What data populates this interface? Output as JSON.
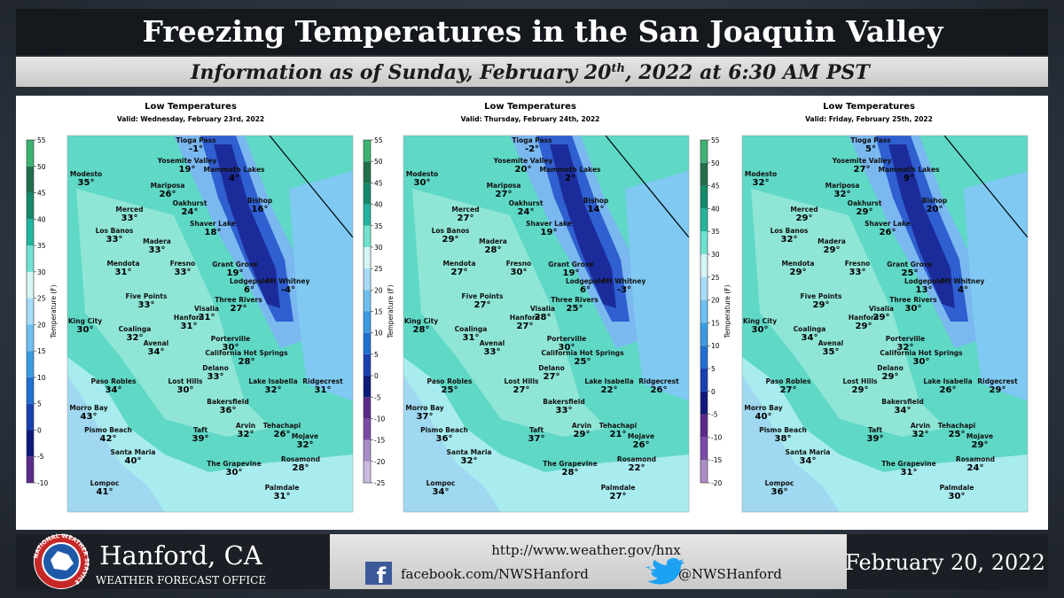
{
  "header": {
    "title": "Freezing Temperatures in the San Joaquin Valley",
    "subtitle": {
      "before": "Information as of Sunday, February 20",
      "sup": "th",
      "after": ", 2022 at 6:30 AM PST"
    }
  },
  "cities": [
    "Tioga Pass",
    "Yosemite Valley",
    "Mammoth Lakes",
    "Modesto",
    "Mariposa",
    "Bishop",
    "Merced",
    "Oakhurst",
    "Shaver Lake",
    "Los Banos",
    "Madera",
    "Fresno",
    "Mendota",
    "Grant Grove",
    "Lodgepole",
    "Mt Whitney",
    "Five Points",
    "Three Rivers",
    "Visalia",
    "Hanford",
    "King City",
    "Coalinga",
    "Avenal",
    "Porterville",
    "California Hot Springs",
    "Delano",
    "Paso Robles",
    "Lost Hills",
    "Lake Isabella",
    "Ridgecrest",
    "Bakersfield",
    "Morro Bay",
    "Arvin",
    "Tehachapi",
    "Pismo Beach",
    "Taft",
    "Mojave",
    "Santa Maria",
    "Rosamond",
    "The Grapevine",
    "Lompoc",
    "Palmdale"
  ],
  "panels": [
    {
      "title": "Low Temperatures",
      "valid": "Valid: Wednesday, February 23rd, 2022",
      "colorbar": {
        "label": "Temperature (F)",
        "lim": [
          -10,
          55
        ],
        "ticks": [
          -10,
          -5,
          0,
          5,
          10,
          15,
          20,
          25,
          30,
          35,
          40,
          45,
          50,
          55
        ],
        "colors": [
          "#5a2a8a",
          "#0d1a7a",
          "#1a3fb0",
          "#1f6fd1",
          "#3a9be3",
          "#6ec0f0",
          "#a7dcf7",
          "#d4f5f2",
          "#6fe3cf",
          "#22b5a0",
          "#138a6b",
          "#1f6f4a",
          "#3cb371"
        ]
      },
      "temps": [
        "-1°",
        "19°",
        "4°",
        "35°",
        "26°",
        "16°",
        "33°",
        "24°",
        "18°",
        "33°",
        "33°",
        "33°",
        "31°",
        "19°",
        "6°",
        "-4°",
        "33°",
        "27°",
        "31°",
        "31°",
        "30°",
        "32°",
        "34°",
        "30°",
        "28°",
        "33°",
        "34°",
        "30°",
        "32°",
        "31°",
        "36°",
        "43°",
        "32°",
        "26°",
        "42°",
        "39°",
        "32°",
        "40°",
        "28°",
        "30°",
        "41°",
        "31°"
      ]
    },
    {
      "title": "Low Temperatures",
      "valid": "Valid: Thursday, February 24th, 2022",
      "colorbar": {
        "label": "Temperature (F)",
        "lim": [
          -25,
          55
        ],
        "ticks": [
          -25,
          -20,
          -15,
          -10,
          -5,
          0,
          5,
          10,
          15,
          20,
          25,
          30,
          35,
          40,
          45,
          50,
          55
        ],
        "colors": [
          "#cbbbe0",
          "#a98cc8",
          "#7b4aa6",
          "#5a2a8a",
          "#0d1a7a",
          "#1a3fb0",
          "#1f6fd1",
          "#3a9be3",
          "#6ec0f0",
          "#a7dcf7",
          "#d4f5f2",
          "#6fe3cf",
          "#22b5a0",
          "#138a6b",
          "#1f6f4a",
          "#3cb371"
        ]
      },
      "temps": [
        "-2°",
        "20°",
        "2°",
        "30°",
        "27°",
        "14°",
        "27°",
        "24°",
        "19°",
        "29°",
        "28°",
        "30°",
        "27°",
        "19°",
        "6°",
        "-3°",
        "27°",
        "25°",
        "28°",
        "27°",
        "28°",
        "31°",
        "33°",
        "30°",
        "25°",
        "27°",
        "25°",
        "27°",
        "22°",
        "26°",
        "33°",
        "37°",
        "29°",
        "21°",
        "36°",
        "37°",
        "26°",
        "32°",
        "22°",
        "28°",
        "34°",
        "27°"
      ]
    },
    {
      "title": "Low Temperatures",
      "valid": "Valid: Friday, February 25th, 2022",
      "colorbar": {
        "label": "Temperature (F)",
        "lim": [
          -20,
          55
        ],
        "ticks": [
          -20,
          -15,
          -10,
          -5,
          0,
          5,
          10,
          15,
          20,
          25,
          30,
          35,
          40,
          45,
          50,
          55
        ],
        "colors": [
          "#a98cc8",
          "#7b4aa6",
          "#5a2a8a",
          "#0d1a7a",
          "#1a3fb0",
          "#1f6fd1",
          "#3a9be3",
          "#6ec0f0",
          "#a7dcf7",
          "#d4f5f2",
          "#6fe3cf",
          "#22b5a0",
          "#138a6b",
          "#1f6f4a",
          "#3cb371"
        ]
      },
      "temps": [
        "5°",
        "27°",
        "9°",
        "32°",
        "32°",
        "20°",
        "29°",
        "29°",
        "26°",
        "32°",
        "29°",
        "33°",
        "29°",
        "25°",
        "13°",
        "4°",
        "29°",
        "30°",
        "29°",
        "29°",
        "30°",
        "34°",
        "35°",
        "32°",
        "30°",
        "29°",
        "27°",
        "29°",
        "26°",
        "29°",
        "34°",
        "40°",
        "32°",
        "25°",
        "38°",
        "39°",
        "29°",
        "34°",
        "24°",
        "31°",
        "36°",
        "30°"
      ]
    }
  ],
  "footer": {
    "logo_text": "NATIONAL WEATHER SERVICE",
    "office": "Hanford, CA",
    "office_type": "WEATHER FORECAST OFFICE",
    "url": "http://www.weather.gov/hnx",
    "facebook": "facebook.com/NWSHanford",
    "twitter": "@NWSHanford",
    "date": "February 20, 2022"
  }
}
